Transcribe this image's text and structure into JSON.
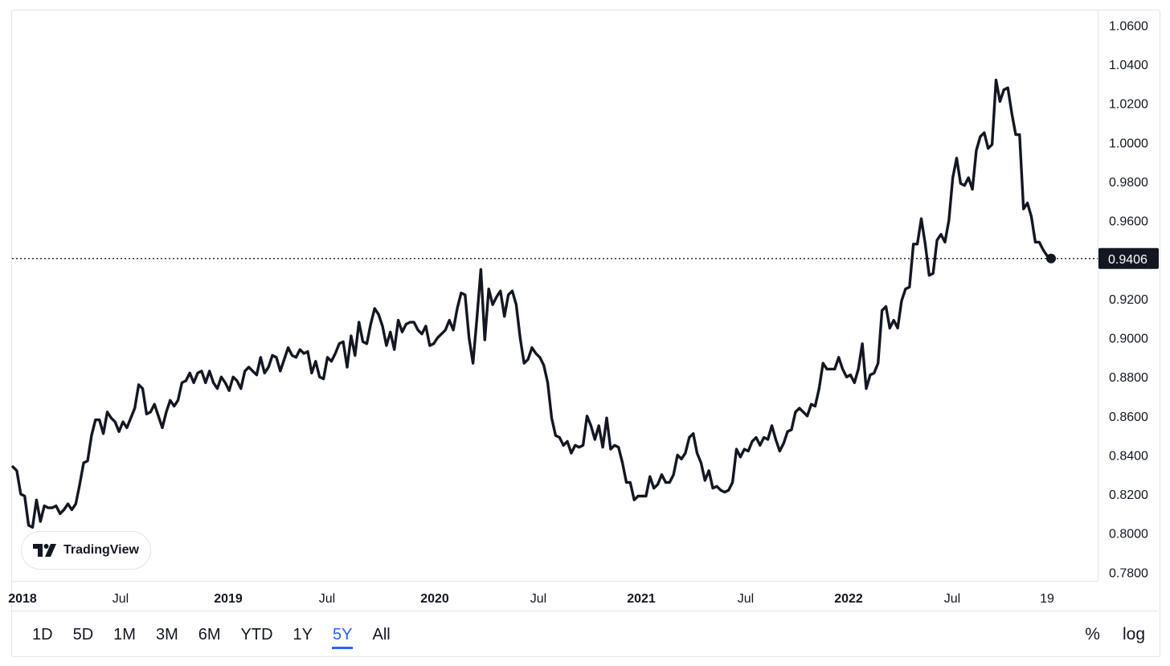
{
  "chart_data": {
    "type": "line",
    "symbol_note": "",
    "x_tick_labels": [
      "2018",
      "Jul",
      "2019",
      "Jul",
      "2020",
      "Jul",
      "2021",
      "Jul",
      "2022",
      "Jul",
      "19"
    ],
    "x_tick_bold": [
      true,
      false,
      true,
      false,
      true,
      false,
      true,
      false,
      true,
      false,
      false
    ],
    "y_tick_labels": [
      "1.0600",
      "1.0400",
      "1.0200",
      "1.0000",
      "0.9800",
      "0.9600",
      "0.9400",
      "0.9200",
      "0.9000",
      "0.8800",
      "0.8600",
      "0.8400",
      "0.8200",
      "0.8000",
      "0.7800"
    ],
    "y_ticks": [
      1.06,
      1.04,
      1.02,
      1.0,
      0.98,
      0.96,
      0.94,
      0.92,
      0.9,
      0.88,
      0.86,
      0.84,
      0.82,
      0.8,
      0.78
    ],
    "ylim": [
      0.7756,
      1.0676
    ],
    "current_value": 0.9406,
    "current_value_label": "0.9406",
    "line_color": "#131722",
    "grid": false,
    "series": [
      {
        "values": [
          0.834,
          0.832,
          0.82,
          0.819,
          0.804,
          0.803,
          0.817,
          0.806,
          0.814,
          0.813,
          0.813,
          0.814,
          0.81,
          0.812,
          0.815,
          0.812,
          0.815,
          0.825,
          0.836,
          0.837,
          0.85,
          0.858,
          0.858,
          0.851,
          0.862,
          0.859,
          0.857,
          0.852,
          0.857,
          0.854,
          0.859,
          0.864,
          0.876,
          0.874,
          0.861,
          0.862,
          0.866,
          0.86,
          0.854,
          0.862,
          0.868,
          0.865,
          0.868,
          0.877,
          0.878,
          0.882,
          0.877,
          0.882,
          0.883,
          0.877,
          0.883,
          0.877,
          0.874,
          0.88,
          0.877,
          0.873,
          0.88,
          0.878,
          0.874,
          0.883,
          0.885,
          0.883,
          0.881,
          0.89,
          0.882,
          0.885,
          0.891,
          0.89,
          0.883,
          0.889,
          0.895,
          0.891,
          0.89,
          0.894,
          0.892,
          0.893,
          0.882,
          0.888,
          0.88,
          0.879,
          0.89,
          0.888,
          0.892,
          0.897,
          0.898,
          0.885,
          0.901,
          0.891,
          0.908,
          0.898,
          0.897,
          0.907,
          0.915,
          0.912,
          0.906,
          0.896,
          0.903,
          0.894,
          0.909,
          0.903,
          0.907,
          0.908,
          0.908,
          0.904,
          0.902,
          0.906,
          0.896,
          0.897,
          0.9,
          0.902,
          0.904,
          0.909,
          0.904,
          0.915,
          0.923,
          0.922,
          0.9,
          0.887,
          0.91,
          0.935,
          0.899,
          0.925,
          0.917,
          0.921,
          0.924,
          0.911,
          0.922,
          0.924,
          0.917,
          0.9,
          0.887,
          0.889,
          0.895,
          0.892,
          0.89,
          0.886,
          0.877,
          0.859,
          0.85,
          0.849,
          0.845,
          0.847,
          0.841,
          0.845,
          0.844,
          0.845,
          0.86,
          0.855,
          0.848,
          0.855,
          0.844,
          0.859,
          0.843,
          0.845,
          0.844,
          0.836,
          0.826,
          0.826,
          0.817,
          0.819,
          0.819,
          0.819,
          0.829,
          0.823,
          0.825,
          0.83,
          0.826,
          0.826,
          0.83,
          0.84,
          0.838,
          0.841,
          0.849,
          0.851,
          0.841,
          0.836,
          0.827,
          0.832,
          0.823,
          0.824,
          0.822,
          0.821,
          0.822,
          0.826,
          0.843,
          0.839,
          0.843,
          0.842,
          0.847,
          0.849,
          0.845,
          0.849,
          0.848,
          0.855,
          0.848,
          0.842,
          0.846,
          0.852,
          0.853,
          0.862,
          0.864,
          0.862,
          0.86,
          0.866,
          0.865,
          0.874,
          0.887,
          0.884,
          0.884,
          0.884,
          0.89,
          0.884,
          0.88,
          0.881,
          0.877,
          0.884,
          0.897,
          0.874,
          0.881,
          0.882,
          0.887,
          0.914,
          0.916,
          0.905,
          0.909,
          0.905,
          0.919,
          0.925,
          0.926,
          0.948,
          0.948,
          0.961,
          0.948,
          0.932,
          0.933,
          0.95,
          0.953,
          0.949,
          0.96,
          0.982,
          0.992,
          0.979,
          0.978,
          0.982,
          0.976,
          0.996,
          1.003,
          1.005,
          0.997,
          0.999,
          1.032,
          1.021,
          1.027,
          1.028,
          1.015,
          1.004,
          1.004,
          0.966,
          0.969,
          0.962,
          0.949,
          0.949,
          0.945,
          0.942,
          0.9406
        ]
      }
    ]
  },
  "toolbar": {
    "ranges": [
      "1D",
      "5D",
      "1M",
      "3M",
      "6M",
      "YTD",
      "1Y",
      "5Y",
      "All"
    ],
    "active_range": "5Y",
    "percent_label": "%",
    "log_label": "log"
  },
  "logo": {
    "text": "TradingView"
  }
}
